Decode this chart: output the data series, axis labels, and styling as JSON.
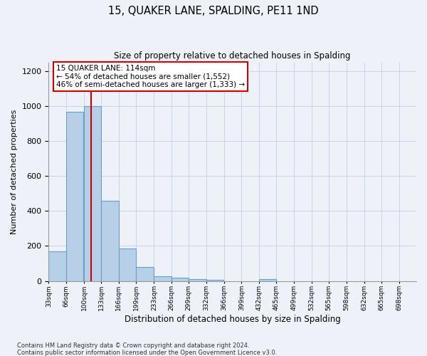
{
  "title": "15, QUAKER LANE, SPALDING, PE11 1ND",
  "subtitle": "Size of property relative to detached houses in Spalding",
  "xlabel": "Distribution of detached houses by size in Spalding",
  "ylabel": "Number of detached properties",
  "footnote1": "Contains HM Land Registry data © Crown copyright and database right 2024.",
  "footnote2": "Contains public sector information licensed under the Open Government Licence v3.0.",
  "annotation_title": "15 QUAKER LANE: 114sqm",
  "annotation_line2": "← 54% of detached houses are smaller (1,552)",
  "annotation_line3": "46% of semi-detached houses are larger (1,333) →",
  "property_sqm": 114,
  "bin_starts": [
    33,
    66,
    100,
    133,
    166,
    199,
    233,
    266,
    299,
    332,
    366,
    399,
    432,
    465,
    499,
    532,
    565,
    598,
    632,
    665
  ],
  "bin_width": 33,
  "bar_values": [
    170,
    970,
    1000,
    460,
    185,
    80,
    25,
    20,
    12,
    5,
    0,
    0,
    12,
    0,
    0,
    0,
    0,
    0,
    0,
    0
  ],
  "bar_color": "#b8cfe8",
  "bar_edge_color": "#6a9fc8",
  "red_line_color": "#cc0000",
  "annotation_border_color": "#cc0000",
  "grid_color": "#c8d4e8",
  "background_color": "#eef2f8",
  "ylim": [
    0,
    1250
  ],
  "yticks": [
    0,
    200,
    400,
    600,
    800,
    1000,
    1200
  ],
  "tick_labels": [
    "33sqm",
    "66sqm",
    "100sqm",
    "133sqm",
    "166sqm",
    "199sqm",
    "233sqm",
    "266sqm",
    "299sqm",
    "332sqm",
    "366sqm",
    "399sqm",
    "432sqm",
    "465sqm",
    "499sqm",
    "532sqm",
    "565sqm",
    "598sqm",
    "632sqm",
    "665sqm",
    "698sqm"
  ]
}
